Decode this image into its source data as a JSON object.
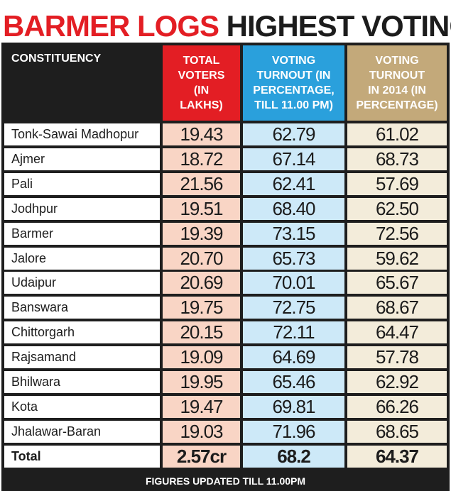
{
  "title": {
    "part1": "BARMER LOGS",
    "part2": "HIGHEST VOTING"
  },
  "colors": {
    "title_red": "#e31e24",
    "header_dark": "#1e1e1e",
    "col1_header": "#e31e24",
    "col1_cells": "#f9d5c5",
    "col2_header": "#2aa0dc",
    "col2_cells": "#cde9f8",
    "col3_header": "#c3a97a",
    "col3_cells": "#f3ecda"
  },
  "chart_data": {
    "type": "table",
    "title": "BARMER LOGS HIGHEST VOTING",
    "columns": [
      "CONSTITUENCY",
      "TOTAL\nVOTERS\n(IN\nLAKHS)",
      "VOTING\nTURNOUT (IN\nPERCENTAGE,\nTILL 11.00 PM)",
      "VOTING\nTURNOUT\nIN 2014 (IN\nPERCENTAGE)"
    ],
    "rows": [
      [
        "Tonk-Sawai Madhopur",
        "19.43",
        "62.79",
        "61.02"
      ],
      [
        "Ajmer",
        "18.72",
        "67.14",
        "68.73"
      ],
      [
        "Pali",
        "21.56",
        "62.41",
        "57.69"
      ],
      [
        "Jodhpur",
        "19.51",
        "68.40",
        "62.50"
      ],
      [
        "Barmer",
        "19.39",
        "73.15",
        "72.56"
      ],
      [
        "Jalore",
        "20.70",
        "65.73",
        "59.62"
      ],
      [
        "Udaipur",
        "20.69",
        "70.01",
        "65.67"
      ],
      [
        "Banswara",
        "19.75",
        "72.75",
        "68.67"
      ],
      [
        "Chittorgarh",
        "20.15",
        "72.11",
        "64.47"
      ],
      [
        "Rajsamand",
        "19.09",
        "64.69",
        "57.78"
      ],
      [
        "Bhilwara",
        "19.95",
        "65.46",
        "62.92"
      ],
      [
        "Kota",
        "19.47",
        "69.81",
        "66.26"
      ],
      [
        "Jhalawar-Baran",
        "19.03",
        "71.96",
        "68.65"
      ]
    ],
    "total": [
      "Total",
      "2.57cr",
      "68.2",
      "64.37"
    ],
    "footnote": "FIGURES UPDATED TILL 11.00PM"
  }
}
